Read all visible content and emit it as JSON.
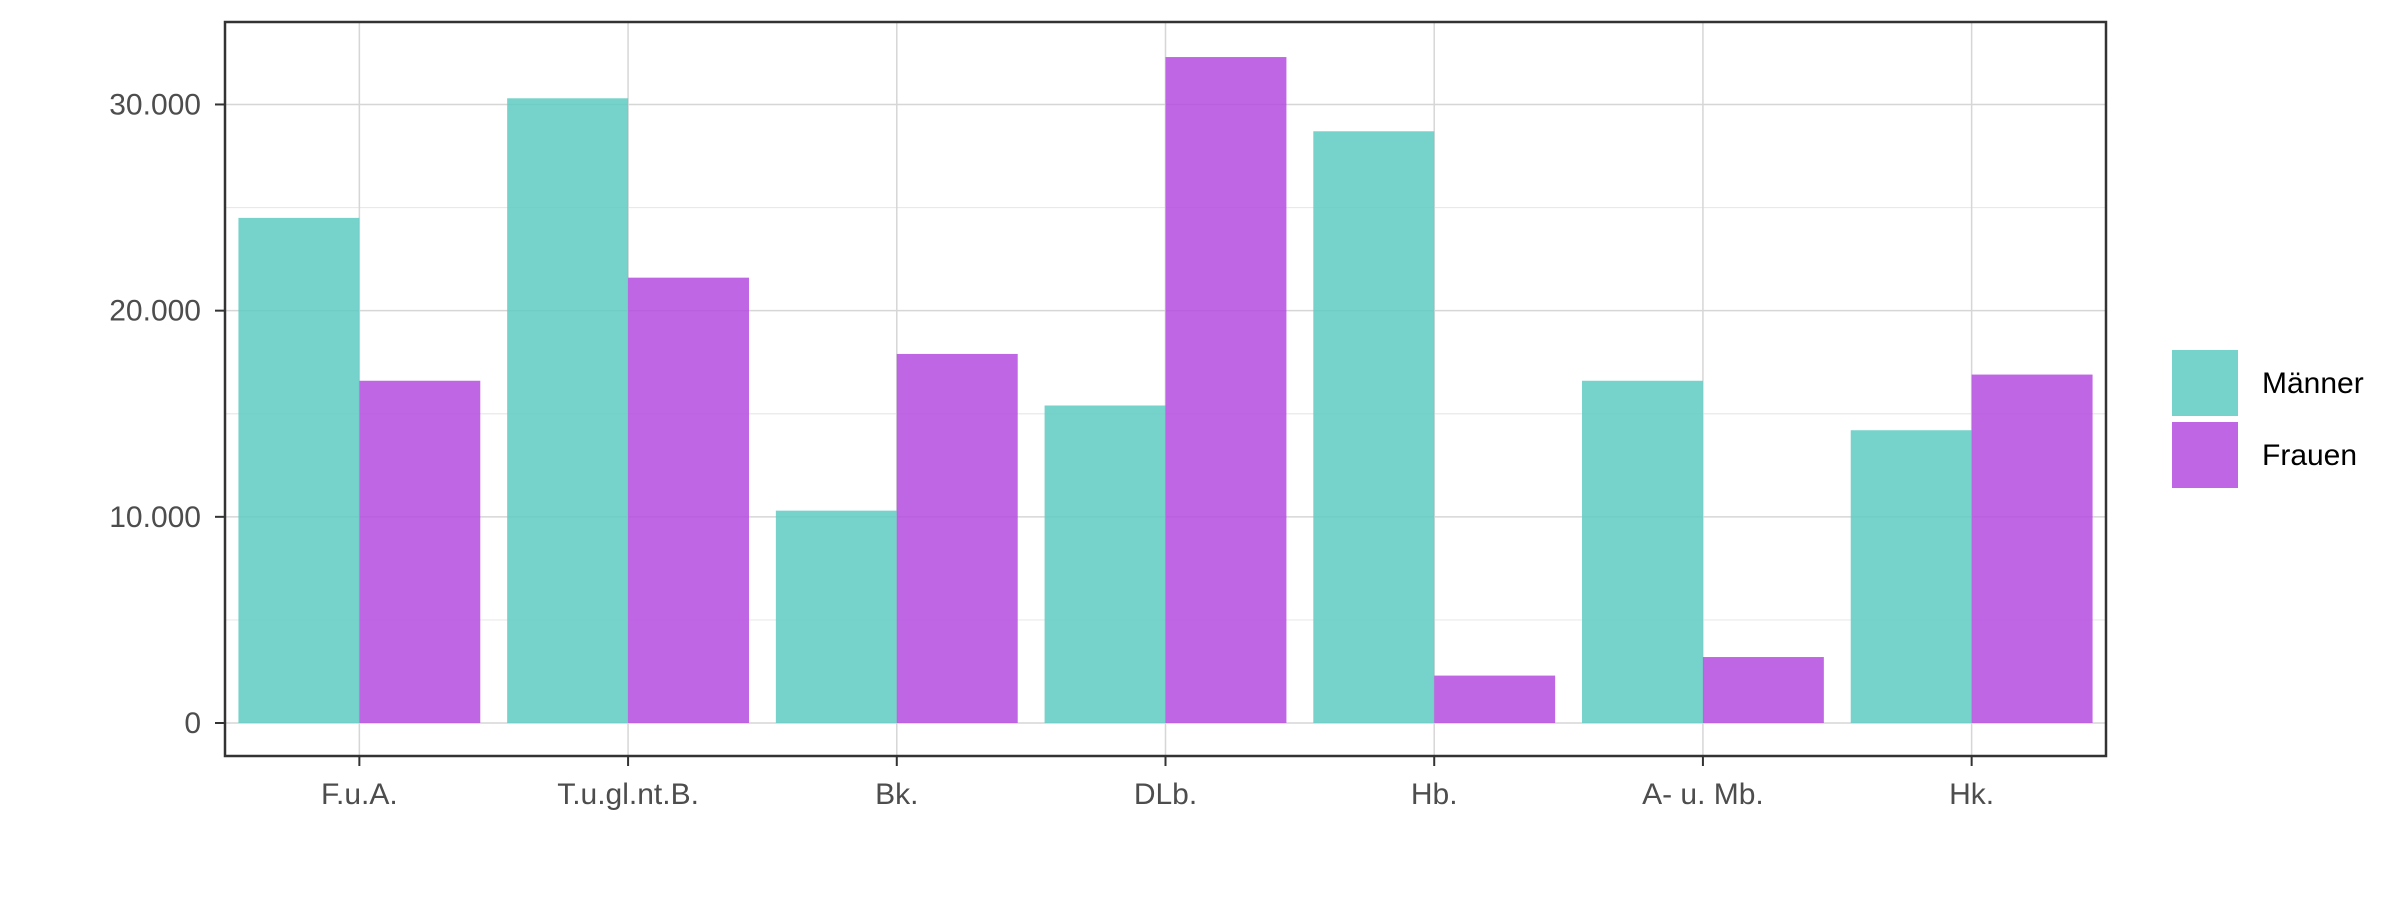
{
  "chart_data": {
    "type": "bar",
    "title": "",
    "xlabel": "",
    "ylabel": "",
    "categories": [
      "F.u.A.",
      "T.u.gl.nt.B.",
      "Bk.",
      "DLb.",
      "Hb.",
      "A- u. Mb.",
      "Hk."
    ],
    "series": [
      {
        "name": "Männer",
        "color": "#5ecbc3",
        "values": [
          24500,
          30300,
          10300,
          15400,
          28700,
          16600,
          14200
        ]
      },
      {
        "name": "Frauen",
        "color": "#b44be1",
        "values": [
          16600,
          21600,
          17900,
          32300,
          2300,
          3200,
          16900
        ]
      }
    ],
    "ylim": [
      -1600,
      34000
    ],
    "yticks": [
      0,
      10000,
      20000,
      30000
    ],
    "ytick_labels": [
      "0",
      "10.000",
      "20.000",
      "30.000"
    ],
    "grid": true,
    "legend_position": "right"
  }
}
